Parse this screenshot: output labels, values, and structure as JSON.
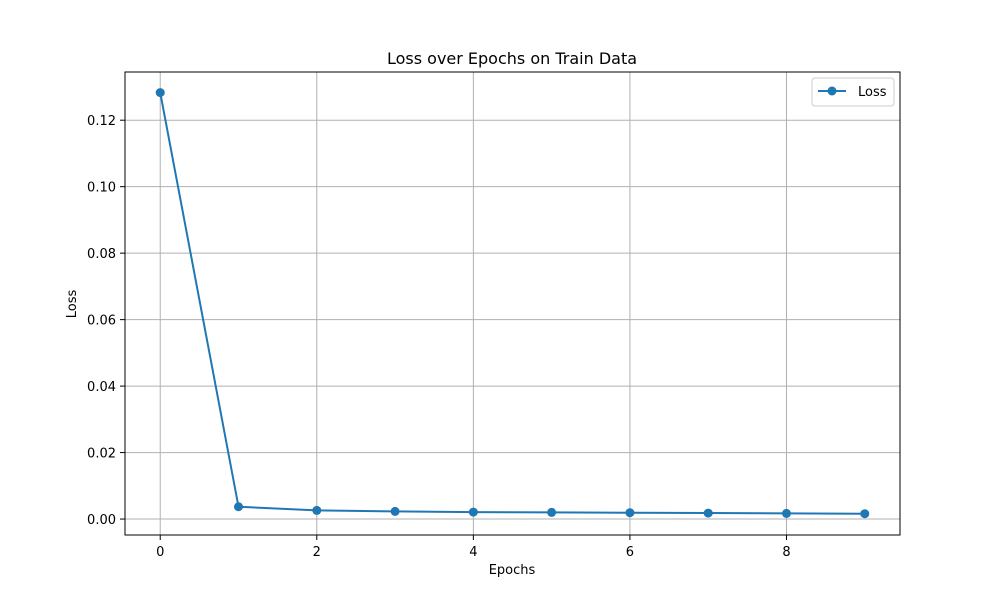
{
  "chart_data": {
    "type": "line",
    "title": "Loss over Epochs on Train Data",
    "xlabel": "Epochs",
    "ylabel": "Loss",
    "xlim": [
      -0.45,
      9.45
    ],
    "ylim": [
      -0.0048,
      0.1345
    ],
    "xticks": [
      0,
      2,
      4,
      6,
      8
    ],
    "xtick_labels": [
      "0",
      "2",
      "4",
      "6",
      "8"
    ],
    "yticks": [
      0.0,
      0.02,
      0.04,
      0.06,
      0.08,
      0.1,
      0.12
    ],
    "ytick_labels": [
      "0.00",
      "0.02",
      "0.04",
      "0.06",
      "0.08",
      "0.10",
      "0.12"
    ],
    "grid": true,
    "legend_position": "upper right",
    "series": [
      {
        "name": "Loss",
        "color": "#1f77b4",
        "marker": "circle",
        "x": [
          0,
          1,
          2,
          3,
          4,
          5,
          6,
          7,
          8,
          9
        ],
        "y": [
          0.1283,
          0.0037,
          0.0026,
          0.0023,
          0.0021,
          0.002,
          0.0019,
          0.0018,
          0.0017,
          0.0016
        ]
      }
    ]
  }
}
